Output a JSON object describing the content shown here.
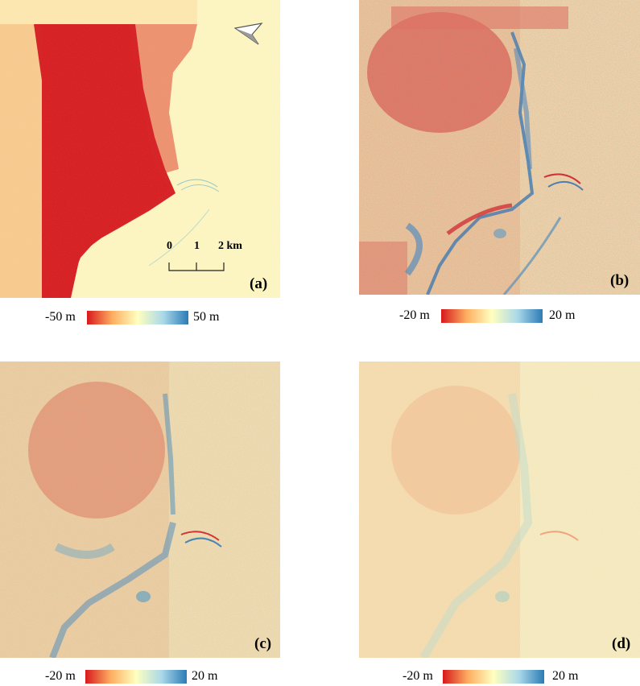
{
  "panels": {
    "a": {
      "label": "(a)"
    },
    "b": {
      "label": "(b)"
    },
    "c": {
      "label": "(c)"
    },
    "d": {
      "label": "(d)"
    }
  },
  "colorbars": {
    "a": {
      "min": "-50 m",
      "max": "50 m"
    },
    "b": {
      "min": "-20 m",
      "max": "20 m"
    },
    "c": {
      "min": "-20 m",
      "max": "20 m"
    },
    "d": {
      "min": "-20 m",
      "max": "20 m"
    }
  },
  "scalebar": {
    "ticks": [
      "0",
      "1",
      "2 km"
    ]
  },
  "colormap": [
    "#d7191c",
    "#fdae61",
    "#ffffbf",
    "#abd9e9",
    "#2c7bb6"
  ],
  "icons": {
    "north_arrow": "north-arrow-icon"
  }
}
